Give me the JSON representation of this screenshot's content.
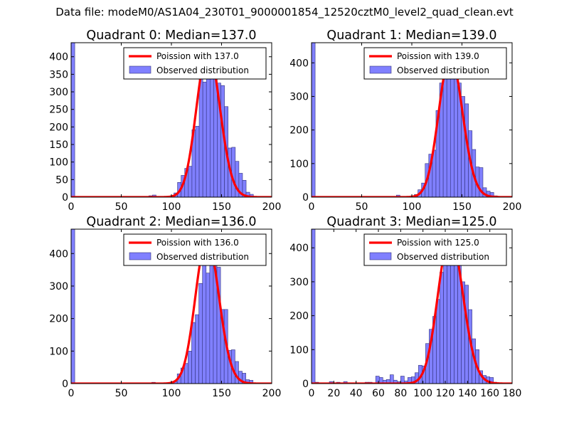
{
  "suptitle": "Data file: modeM0/AS1A04_230T01_9000001854_12520cztM0_level2_quad_clean.evt",
  "colors": {
    "bar_fill": "#8080ff",
    "bar_edge": "#33337a",
    "poisson_line": "#ff0000"
  },
  "chart_data": [
    {
      "type": "bar",
      "title": "Quadrant 0: Median=137.0",
      "legend": [
        "Poission with 137.0",
        "Observed distribution"
      ],
      "legend_position": "top-right",
      "xlim": [
        0,
        200
      ],
      "ylim": [
        0,
        440
      ],
      "xticks": [
        0,
        50,
        100,
        150,
        200
      ],
      "xtick_labels": [
        "0",
        "50",
        "100",
        "150",
        "200"
      ],
      "yticks": [
        0,
        50,
        100,
        150,
        200,
        250,
        300,
        350,
        400
      ],
      "ytick_labels": [
        "0",
        "50",
        "100",
        "150",
        "200",
        "250",
        "300",
        "350",
        "400"
      ],
      "mean": 137.0,
      "peak": 420,
      "bins": [
        [
          0,
          3.6,
          440
        ],
        [
          77.5,
          3.6,
          4
        ],
        [
          81.1,
          3.6,
          6
        ],
        [
          98.9,
          3.6,
          4
        ],
        [
          102.5,
          3.6,
          12
        ],
        [
          106.1,
          3.6,
          42
        ],
        [
          109.7,
          3.6,
          62
        ],
        [
          113.3,
          3.6,
          82
        ],
        [
          116.9,
          3.6,
          88
        ],
        [
          120.5,
          3.6,
          192
        ],
        [
          124.1,
          3.6,
          202
        ],
        [
          127.7,
          3.6,
          360
        ],
        [
          131.3,
          3.6,
          328
        ],
        [
          134.9,
          3.6,
          380
        ],
        [
          138.5,
          3.6,
          420
        ],
        [
          142.1,
          3.6,
          365
        ],
        [
          145.7,
          3.6,
          325
        ],
        [
          149.3,
          3.6,
          318
        ],
        [
          152.9,
          3.6,
          258
        ],
        [
          156.5,
          3.6,
          140
        ],
        [
          160.1,
          3.6,
          142
        ],
        [
          163.7,
          3.6,
          102
        ],
        [
          167.3,
          3.6,
          68
        ],
        [
          170.9,
          3.6,
          48
        ],
        [
          174.5,
          3.6,
          14
        ],
        [
          178.1,
          3.6,
          8
        ]
      ]
    },
    {
      "type": "bar",
      "title": "Quadrant 1: Median=139.0",
      "legend": [
        "Poission with 139.0",
        "Observed distribution"
      ],
      "legend_position": "top-right",
      "xlim": [
        0,
        200
      ],
      "ylim": [
        0,
        460
      ],
      "xticks": [
        0,
        50,
        100,
        150,
        200
      ],
      "xtick_labels": [
        "0",
        "50",
        "100",
        "150",
        "200"
      ],
      "yticks": [
        0,
        100,
        200,
        300,
        400
      ],
      "ytick_labels": [
        "0",
        "100",
        "200",
        "300",
        "400"
      ],
      "mean": 139.0,
      "peak": 420,
      "bins": [
        [
          0,
          3.6,
          460
        ],
        [
          84.6,
          3.6,
          6
        ],
        [
          98.9,
          3.6,
          4
        ],
        [
          102.5,
          3.6,
          8
        ],
        [
          106.1,
          3.6,
          22
        ],
        [
          109.7,
          3.6,
          42
        ],
        [
          113.3,
          3.6,
          100
        ],
        [
          116.9,
          3.6,
          128
        ],
        [
          120.5,
          3.6,
          140
        ],
        [
          124.1,
          3.6,
          258
        ],
        [
          127.7,
          3.6,
          340
        ],
        [
          131.3,
          3.6,
          395
        ],
        [
          134.9,
          3.6,
          390
        ],
        [
          138.5,
          3.6,
          435
        ],
        [
          142.1,
          3.6,
          395
        ],
        [
          145.7,
          3.6,
          340
        ],
        [
          149.3,
          3.6,
          300
        ],
        [
          152.9,
          3.6,
          278
        ],
        [
          156.5,
          3.6,
          198
        ],
        [
          160.1,
          3.6,
          142
        ],
        [
          163.7,
          3.6,
          90
        ],
        [
          167.3,
          3.6,
          88
        ],
        [
          170.9,
          3.6,
          28
        ],
        [
          174.5,
          3.6,
          18
        ],
        [
          178.1,
          3.6,
          14
        ],
        [
          181.7,
          3.6,
          4
        ]
      ]
    },
    {
      "type": "bar",
      "title": "Quadrant 2: Median=136.0",
      "legend": [
        "Poission with 136.0",
        "Observed distribution"
      ],
      "legend_position": "top-right",
      "xlim": [
        0,
        200
      ],
      "ylim": [
        0,
        475
      ],
      "xticks": [
        0,
        50,
        100,
        150,
        200
      ],
      "xtick_labels": [
        "0",
        "50",
        "100",
        "150",
        "200"
      ],
      "yticks": [
        0,
        100,
        200,
        300,
        400
      ],
      "ytick_labels": [
        "0",
        "100",
        "200",
        "300",
        "400"
      ],
      "mean": 136.0,
      "peak": 445,
      "bins": [
        [
          0,
          3.6,
          475
        ],
        [
          80.4,
          3.6,
          4
        ],
        [
          98.6,
          3.6,
          4
        ],
        [
          102.2,
          3.6,
          6
        ],
        [
          105.8,
          3.6,
          30
        ],
        [
          109.4,
          3.6,
          48
        ],
        [
          113,
          3.6,
          62
        ],
        [
          116.6,
          3.6,
          100
        ],
        [
          120.2,
          3.6,
          188
        ],
        [
          123.8,
          3.6,
          212
        ],
        [
          127.4,
          3.6,
          308
        ],
        [
          131,
          3.6,
          398
        ],
        [
          134.6,
          3.6,
          340
        ],
        [
          138.2,
          3.6,
          448
        ],
        [
          141.8,
          3.6,
          392
        ],
        [
          145.4,
          3.6,
          358
        ],
        [
          149,
          3.6,
          228
        ],
        [
          152.6,
          3.6,
          228
        ],
        [
          156.2,
          3.6,
          102
        ],
        [
          159.8,
          3.6,
          104
        ],
        [
          163.4,
          3.6,
          68
        ],
        [
          167,
          3.6,
          38
        ],
        [
          170.6,
          3.6,
          32
        ],
        [
          174.2,
          3.6,
          12
        ],
        [
          177.8,
          3.6,
          10
        ],
        [
          185,
          3.6,
          2
        ],
        [
          188.6,
          3.6,
          2
        ]
      ]
    },
    {
      "type": "bar",
      "title": "Quadrant 3: Median=125.0",
      "legend": [
        "Poission with 125.0",
        "Observed distribution"
      ],
      "legend_position": "top-right",
      "xlim": [
        0,
        180
      ],
      "ylim": [
        0,
        455
      ],
      "xticks": [
        0,
        20,
        40,
        60,
        80,
        100,
        120,
        140,
        160,
        180
      ],
      "xtick_labels": [
        "0",
        "20",
        "40",
        "60",
        "80",
        "100",
        "120",
        "140",
        "160",
        "180"
      ],
      "yticks": [
        0,
        100,
        200,
        300,
        400
      ],
      "ytick_labels": [
        "0",
        "100",
        "200",
        "300",
        "400"
      ],
      "mean": 125.0,
      "peak": 435,
      "bins": [
        [
          0,
          3.2,
          455
        ],
        [
          3.2,
          3.2,
          4
        ],
        [
          16,
          3.2,
          6
        ],
        [
          22.4,
          3.2,
          4
        ],
        [
          28.8,
          3.2,
          6
        ],
        [
          48,
          3.2,
          4
        ],
        [
          51.2,
          3.2,
          4
        ],
        [
          57.6,
          3.2,
          22
        ],
        [
          60.8,
          3.2,
          18
        ],
        [
          64,
          3.2,
          10
        ],
        [
          67.2,
          3.2,
          12
        ],
        [
          70.4,
          3.2,
          26
        ],
        [
          73.6,
          3.2,
          10
        ],
        [
          76.8,
          3.2,
          6
        ],
        [
          80,
          3.2,
          22
        ],
        [
          83.2,
          3.2,
          8
        ],
        [
          86.4,
          3.2,
          18
        ],
        [
          89.6,
          3.2,
          20
        ],
        [
          92.8,
          3.2,
          32
        ],
        [
          96,
          3.2,
          54
        ],
        [
          99.2,
          3.2,
          52
        ],
        [
          102.4,
          3.2,
          118
        ],
        [
          105.6,
          3.2,
          160
        ],
        [
          108.8,
          3.2,
          198
        ],
        [
          112,
          3.2,
          248
        ],
        [
          115.2,
          3.2,
          328
        ],
        [
          118.4,
          3.2,
          388
        ],
        [
          121.6,
          3.2,
          400
        ],
        [
          124.8,
          3.2,
          398
        ],
        [
          128,
          3.2,
          438
        ],
        [
          131.2,
          3.2,
          390
        ],
        [
          134.4,
          3.2,
          300
        ],
        [
          137.6,
          3.2,
          290
        ],
        [
          140.8,
          3.2,
          218
        ],
        [
          144,
          3.2,
          132
        ],
        [
          147.2,
          3.2,
          100
        ],
        [
          150.4,
          3.2,
          38
        ],
        [
          153.6,
          3.2,
          24
        ],
        [
          156.8,
          3.2,
          20
        ],
        [
          160,
          3.2,
          18
        ],
        [
          163.2,
          3.2,
          4
        ]
      ]
    }
  ]
}
